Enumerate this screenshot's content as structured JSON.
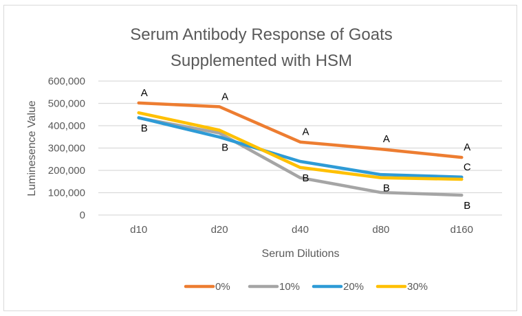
{
  "chart_data": {
    "type": "line",
    "title": [
      "Serum Antibody Response of Goats",
      "Supplemented with HSM"
    ],
    "xlabel": "Serum Dilutions",
    "ylabel": "Luminesence Value",
    "categories": [
      "d10",
      "d20",
      "d40",
      "d80",
      "d160"
    ],
    "ylim": [
      0,
      600000
    ],
    "yticks": [
      0,
      100000,
      200000,
      300000,
      400000,
      500000,
      600000
    ],
    "ytick_labels": [
      "0",
      "100,000",
      "200,000",
      "300,000",
      "400,000",
      "500,000",
      "600,000"
    ],
    "grid": true,
    "legend_position": "bottom",
    "series": [
      {
        "name": "0%",
        "color": "#ED7D31",
        "values": [
          502000,
          485000,
          327000,
          295000,
          258000
        ]
      },
      {
        "name": "10%",
        "color": "#A5A5A5",
        "values": [
          435000,
          367000,
          167000,
          101000,
          89000
        ]
      },
      {
        "name": "20%",
        "color": "#2E9BD6",
        "values": [
          436000,
          349000,
          240000,
          181000,
          170000
        ]
      },
      {
        "name": "30%",
        "color": "#FFC000",
        "values": [
          458000,
          380000,
          213000,
          167000,
          160000
        ]
      }
    ],
    "annotations": [
      {
        "text": "A",
        "category": "d10",
        "series": "0%",
        "position": "above"
      },
      {
        "text": "A",
        "category": "d20",
        "series": "0%",
        "position": "above"
      },
      {
        "text": "A",
        "category": "d40",
        "series": "0%",
        "position": "above"
      },
      {
        "text": "A",
        "category": "d80",
        "series": "0%",
        "position": "above"
      },
      {
        "text": "A",
        "category": "d160",
        "series": "0%",
        "position": "above"
      },
      {
        "text": "B",
        "category": "d10",
        "series": "20%",
        "position": "below"
      },
      {
        "text": "B",
        "category": "d20",
        "series": "20%",
        "position": "below"
      },
      {
        "text": "B",
        "category": "d40",
        "series": "30%",
        "position": "below"
      },
      {
        "text": "B",
        "category": "d80",
        "series": "30%",
        "position": "below"
      },
      {
        "text": "C",
        "category": "d160",
        "series": "20%",
        "position": "above"
      },
      {
        "text": "B",
        "category": "d160",
        "series": "10%",
        "position": "below"
      }
    ]
  }
}
